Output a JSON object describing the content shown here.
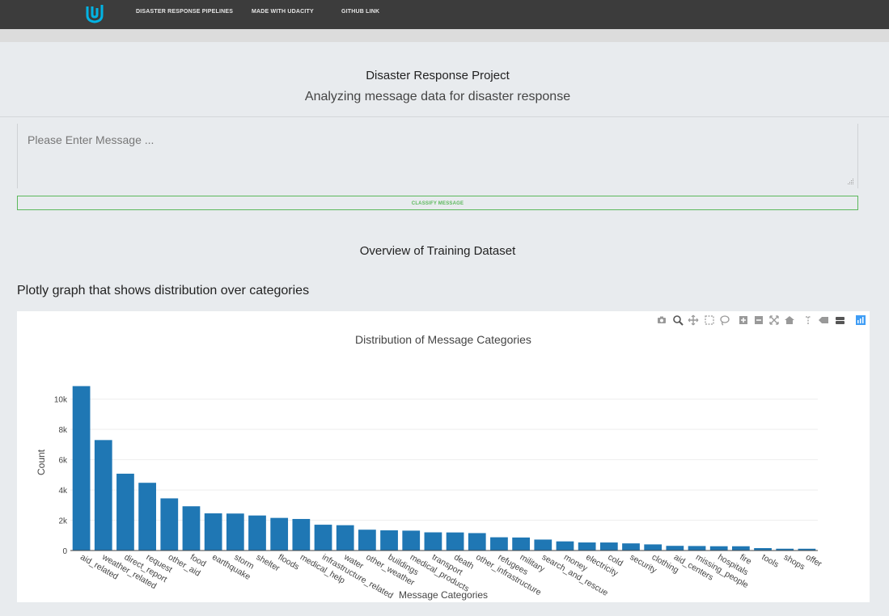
{
  "nav": {
    "links": [
      "DISASTER RESPONSE PIPELINES",
      "MADE WITH UDACITY",
      "GITHUB LINK"
    ]
  },
  "header": {
    "title": "Disaster Response Project",
    "subtitle": "Analyzing message data for disaster response"
  },
  "form": {
    "placeholder": "Please Enter Message ...",
    "button_label": "CLASSIFY MESSAGE"
  },
  "overview_heading": "Overview of Training Dataset",
  "graph_heading": "Plotly graph that shows distribution over categories",
  "modebar_icons": [
    "camera-icon",
    "zoom-icon",
    "pan-icon",
    "box-select-icon",
    "lasso-icon",
    "zoom-in-icon",
    "zoom-out-icon",
    "autoscale-icon",
    "reset-axes-icon",
    "spike-lines-icon",
    "hover-closest-icon",
    "hover-compare-icon",
    "plotly-logo-icon"
  ],
  "colors": {
    "bar": "#1f77b4",
    "navbar": "#3c3c3c",
    "button": "#5cb85c",
    "logo": "#02b3e4"
  },
  "chart_data": {
    "type": "bar",
    "title": "Distribution of Message Categories",
    "xlabel": "Message Categories",
    "ylabel": "Count",
    "ylim": [
      0,
      11000
    ],
    "yticks": [
      0,
      2000,
      4000,
      6000,
      8000,
      10000
    ],
    "ytick_labels": [
      "0",
      "2k",
      "4k",
      "6k",
      "8k",
      "10k"
    ],
    "grid": true,
    "categories": [
      "aid_related",
      "weather_related",
      "direct_report",
      "request",
      "other_aid",
      "food",
      "earthquake",
      "storm",
      "shelter",
      "floods",
      "medical_help",
      "infrastructure_related",
      "water",
      "other_weather",
      "buildings",
      "medical_products",
      "transport",
      "death",
      "other_infrastructure",
      "refugees",
      "military",
      "search_and_rescue",
      "money",
      "electricity",
      "cold",
      "security",
      "clothing",
      "aid_centers",
      "missing_people",
      "hospitals",
      "fire",
      "tools",
      "shops",
      "offer"
    ],
    "values": [
      10860,
      7297,
      5075,
      4474,
      3446,
      2923,
      2455,
      2443,
      2314,
      2155,
      2084,
      1705,
      1672,
      1376,
      1333,
      1313,
      1201,
      1194,
      1151,
      875,
      860,
      724,
      604,
      532,
      530,
      471,
      405,
      309,
      298,
      283,
      282,
      159,
      120,
      118
    ]
  }
}
